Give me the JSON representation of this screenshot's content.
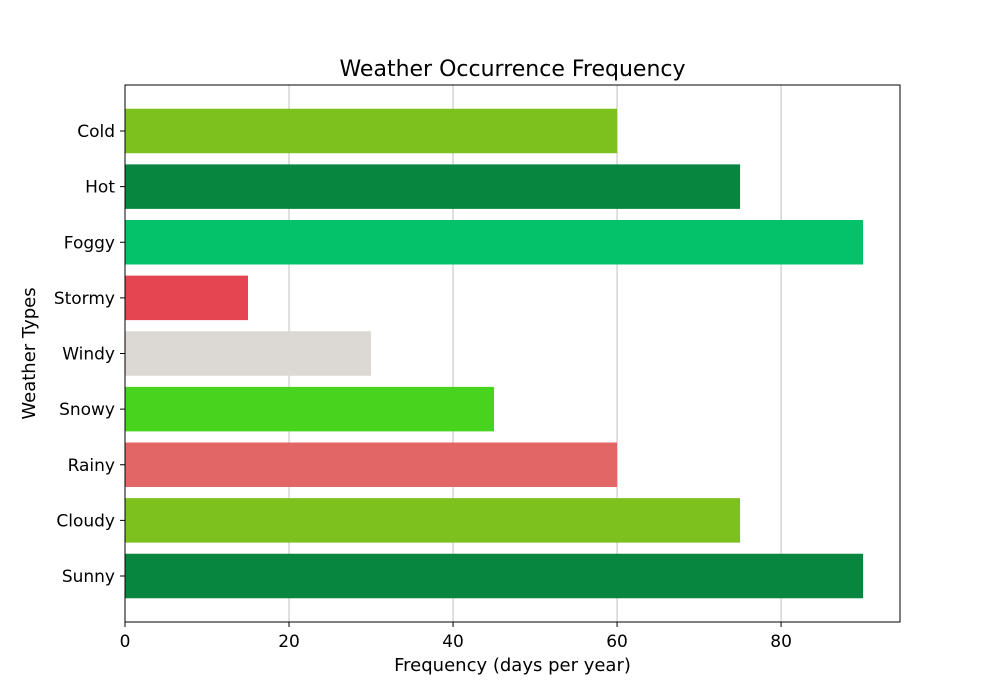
{
  "chart_data": {
    "type": "bar",
    "orientation": "horizontal",
    "title": "Weather Occurrence Frequency",
    "xlabel": "Frequency (days per year)",
    "ylabel": "Weather Types",
    "categories": [
      "Sunny",
      "Cloudy",
      "Rainy",
      "Snowy",
      "Windy",
      "Stormy",
      "Foggy",
      "Hot",
      "Cold"
    ],
    "values": [
      90,
      75,
      60,
      45,
      30,
      15,
      90,
      75,
      60
    ],
    "colors": [
      "#06863e",
      "#7cc11d",
      "#e36666",
      "#48d31f",
      "#dcd9d5",
      "#e54551",
      "#04c269",
      "#06863e",
      "#7cc11d"
    ],
    "xlim": [
      0,
      94.5
    ],
    "xticks": [
      "0",
      "20",
      "40",
      "60",
      "80"
    ],
    "grid": "x-axis vertical gridlines",
    "legend": "none"
  }
}
